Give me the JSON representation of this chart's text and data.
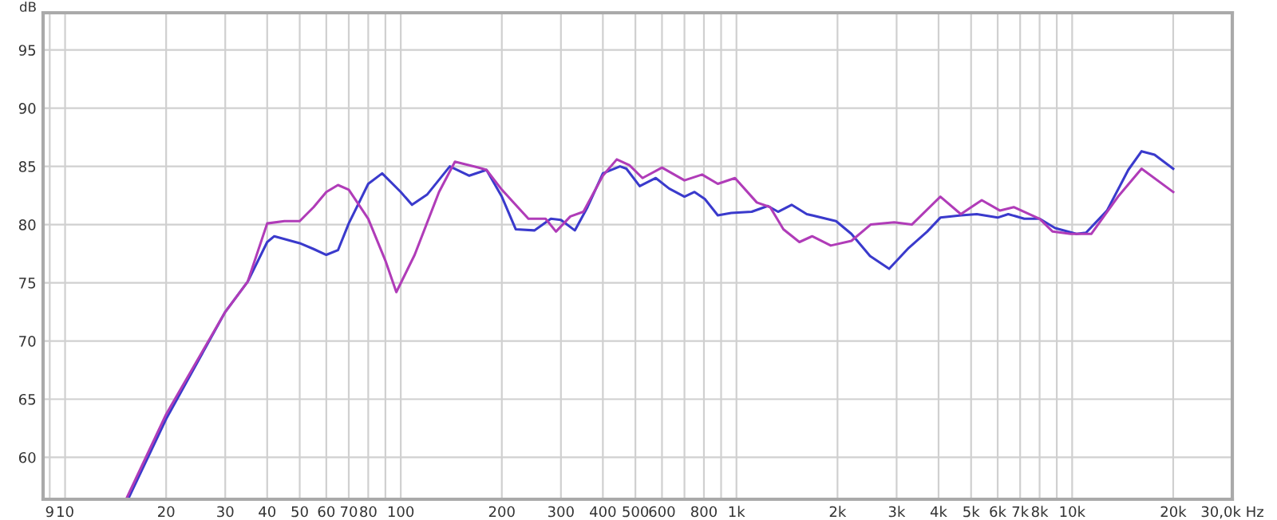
{
  "chart_data": {
    "type": "line",
    "ylabel": "dB",
    "log": "x",
    "grid": true,
    "line_style": "solid",
    "xlim": [
      8.6,
      30000
    ],
    "ylim": [
      56.4,
      98.2
    ],
    "xticks": [
      9,
      10,
      20,
      30,
      40,
      50,
      60,
      70,
      80,
      {
        "value": 90,
        "label": null
      },
      100,
      200,
      300,
      400,
      500,
      600,
      {
        "value": 700,
        "label": null
      },
      800,
      {
        "value": 900,
        "label": null
      },
      {
        "value": 1000,
        "label": "1k"
      },
      {
        "value": 2000,
        "label": "2k"
      },
      {
        "value": 3000,
        "label": "3k"
      },
      {
        "value": 4000,
        "label": "4k"
      },
      {
        "value": 5000,
        "label": "5k"
      },
      {
        "value": 6000,
        "label": "6k"
      },
      {
        "value": 7000,
        "label": "7k"
      },
      {
        "value": 8000,
        "label": "8k"
      },
      {
        "value": 9000,
        "label": null
      },
      {
        "value": 10000,
        "label": "10k"
      },
      {
        "value": 20000,
        "label": "20k"
      },
      {
        "value": 30000,
        "label": "30,0k Hz"
      }
    ],
    "yticks": [
      60,
      65,
      70,
      75,
      80,
      85,
      90,
      95
    ],
    "series": [
      {
        "color": "#3a3acc",
        "x": [
          15.4,
          20,
          30,
          35,
          40,
          42,
          50,
          55,
          60,
          65,
          70,
          80,
          88,
          100,
          108,
          120,
          140,
          160,
          180,
          200,
          220,
          250,
          280,
          300,
          330,
          360,
          400,
          450,
          470,
          515,
          575,
          630,
          700,
          750,
          805,
          880,
          965,
          1110,
          1240,
          1330,
          1460,
          1620,
          1980,
          2200,
          2500,
          2850,
          3260,
          3700,
          4050,
          4670,
          5200,
          6000,
          6450,
          7200,
          8000,
          8900,
          10300,
          11000,
          12700,
          14700,
          16100,
          17600,
          20000
        ],
        "values": [
          56.4,
          63.3,
          72.5,
          75.1,
          78.5,
          79.0,
          78.4,
          77.9,
          77.4,
          77.8,
          80.1,
          83.5,
          84.4,
          82.8,
          81.7,
          82.6,
          85.0,
          84.2,
          84.7,
          82.4,
          79.6,
          79.5,
          80.5,
          80.4,
          79.5,
          81.5,
          84.4,
          85.0,
          84.8,
          83.3,
          84.0,
          83.1,
          82.4,
          82.8,
          82.2,
          80.8,
          81.0,
          81.1,
          81.6,
          81.1,
          81.7,
          80.9,
          80.3,
          79.2,
          77.3,
          76.2,
          78.0,
          79.4,
          80.6,
          80.8,
          80.9,
          80.6,
          80.9,
          80.5,
          80.5,
          79.7,
          79.2,
          79.3,
          81.2,
          84.7,
          86.3,
          86.0,
          84.8
        ]
      },
      {
        "color": "#b03cb8",
        "x": [
          15.2,
          20,
          30,
          35,
          40,
          45,
          50,
          55,
          60,
          65,
          70,
          80,
          90,
          97,
          110,
          130,
          145,
          170,
          180,
          200,
          240,
          270,
          290,
          320,
          350,
          400,
          440,
          480,
          525,
          600,
          700,
          790,
          880,
          990,
          1150,
          1260,
          1380,
          1540,
          1680,
          1910,
          2200,
          2510,
          2950,
          3330,
          4050,
          4660,
          5380,
          6100,
          6700,
          8000,
          8750,
          9900,
          11400,
          13700,
          16100,
          20000
        ],
        "values": [
          56.4,
          63.7,
          72.5,
          75.1,
          80.1,
          80.3,
          80.3,
          81.5,
          82.8,
          83.4,
          83.0,
          80.5,
          76.9,
          74.2,
          77.4,
          82.8,
          85.4,
          84.9,
          84.7,
          83.0,
          80.5,
          80.5,
          79.4,
          80.7,
          81.1,
          84.2,
          85.6,
          85.1,
          84.0,
          84.9,
          83.8,
          84.3,
          83.5,
          84.0,
          81.9,
          81.5,
          79.6,
          78.5,
          79.0,
          78.2,
          78.6,
          80.0,
          80.2,
          80.0,
          82.4,
          80.9,
          82.1,
          81.2,
          81.5,
          80.5,
          79.4,
          79.2,
          79.2,
          82.4,
          84.8,
          82.8
        ]
      }
    ]
  }
}
